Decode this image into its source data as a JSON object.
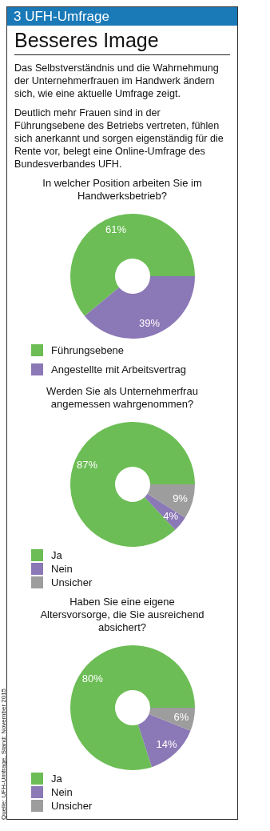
{
  "chart_data": [
    {
      "type": "other",
      "subtitle": "3 UFH-Umfrage",
      "title": "Besseres Image",
      "annotations": [
        "Das Selbstverständnis und die Wahrnehmung der Unternehmerfrauen im Handwerk ändern sich, wie eine aktuelle Umfrage zeigt.",
        "Deutlich mehr Frauen sind in der Führungsebene des Betriebs vertreten, fühlen sich anerkannt und sorgen eigenständig für die Rente vor, belegt eine Online-Umfrage des Bundesverbandes UFH."
      ]
    },
    {
      "type": "donut",
      "title": "In welcher Position arbeiten Sie im Handwerksbetrieb?",
      "categories": [
        "Führungsebene",
        "Angestellte mit Arbeitsvertrag"
      ],
      "values": [
        61,
        39
      ],
      "value_labels": [
        "61%",
        "39%"
      ],
      "colors": [
        "#6cbd55",
        "#8b78b6"
      ],
      "legend": "bottom"
    },
    {
      "type": "donut",
      "title": "Werden Sie als Unternehmerfrau angemessen wahrgenommen?",
      "categories": [
        "Ja",
        "Nein",
        "Unsicher"
      ],
      "values": [
        87,
        4,
        9
      ],
      "value_labels": [
        "87%",
        "4%",
        "9%"
      ],
      "colors": [
        "#6cbd55",
        "#8b78b6",
        "#9d9d9d"
      ],
      "legend": "bottom"
    },
    {
      "type": "donut",
      "title": "Haben Sie eine eigene Altersvorsorge, die Sie ausreichend absichert?",
      "categories": [
        "Ja",
        "Nein",
        "Unsicher"
      ],
      "values": [
        80,
        14,
        6
      ],
      "value_labels": [
        "80%",
        "14%",
        "6%"
      ],
      "colors": [
        "#6cbd55",
        "#8b78b6",
        "#9d9d9d"
      ],
      "legend": "bottom",
      "annotations": [
        "Quelle: UFH-Umfrage, Stand: November 2015"
      ]
    }
  ]
}
